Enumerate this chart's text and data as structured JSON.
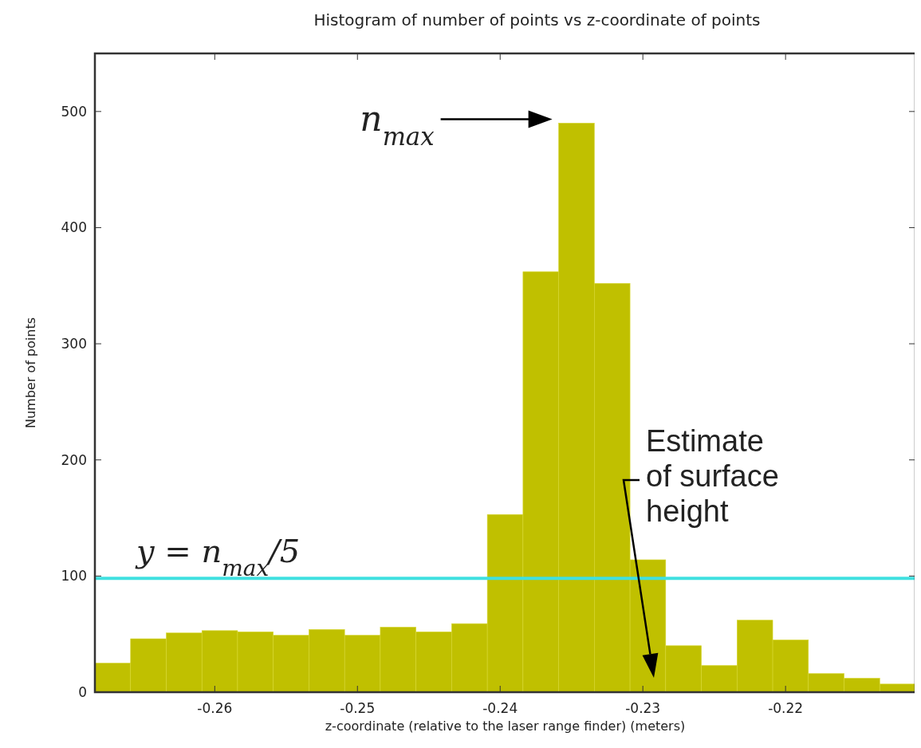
{
  "chart_data": {
    "type": "histogram",
    "title": "Histogram of number of points vs z-coordinate of points",
    "xlabel": "z-coordinate (relative to the laser range finder) (meters)",
    "ylabel": "Number of points",
    "bins": [
      -0.2684,
      -0.2659,
      -0.2634,
      -0.2609,
      -0.2584,
      -0.2559,
      -0.2534,
      -0.2509,
      -0.2484,
      -0.2459,
      -0.2434,
      -0.2409,
      -0.2384,
      -0.2359,
      -0.2334,
      -0.2309,
      -0.2284,
      -0.2259,
      -0.2234,
      -0.2209,
      -0.2184,
      -0.2159,
      -0.2134,
      -0.2109
    ],
    "values": [
      25,
      46,
      51,
      53,
      52,
      49,
      54,
      49,
      56,
      52,
      59,
      153,
      362,
      490,
      352,
      114,
      40,
      23,
      62,
      45,
      16,
      12,
      7
    ],
    "color": "#c0c000",
    "xlim": [
      -0.2684,
      -0.2109
    ],
    "ylim": [
      0,
      550
    ],
    "xticks": [
      -0.26,
      -0.25,
      -0.24,
      -0.23,
      -0.22
    ],
    "yticks": [
      0,
      100,
      200,
      300,
      400,
      500
    ],
    "ref_lines": [
      {
        "axis": "y",
        "value": 98,
        "label": "y = n$_{max}$/5",
        "color": "#40e0e0"
      }
    ],
    "annotations": [
      "n$_{max}$",
      "Estimate of surface height"
    ],
    "grid": false
  }
}
